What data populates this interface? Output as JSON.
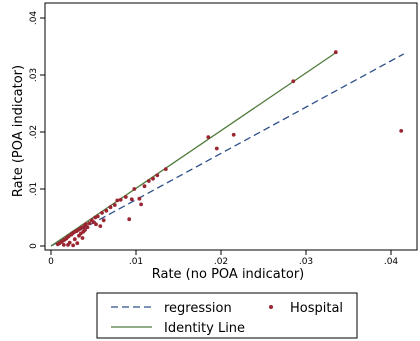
{
  "chart_data": {
    "type": "scatter",
    "xlabel": "Rate (no POA indicator)",
    "ylabel": "Rate (POA indicator)",
    "xlim": [
      0,
      0.042
    ],
    "ylim": [
      0,
      0.04
    ],
    "x_ticks": [
      {
        "v": 0,
        "label": "0"
      },
      {
        "v": 0.01,
        "label": ".01"
      },
      {
        "v": 0.02,
        "label": ".02"
      },
      {
        "v": 0.03,
        "label": ".03"
      },
      {
        "v": 0.04,
        "label": ".04"
      }
    ],
    "y_ticks": [
      {
        "v": 0,
        "label": "0"
      },
      {
        "v": 0.01,
        "label": ".01"
      },
      {
        "v": 0.02,
        "label": ".02"
      },
      {
        "v": 0.03,
        "label": ".03"
      },
      {
        "v": 0.04,
        "label": ".04"
      }
    ],
    "grid": false,
    "legend_position": "bottom",
    "legend": [
      {
        "name": "regression",
        "style": "dashed-line",
        "color": "#2e4f8a"
      },
      {
        "name": "Hospital",
        "style": "marker",
        "color": "#9b2530"
      },
      {
        "name": "Identity Line",
        "style": "solid-line",
        "color": "#4f7a3a"
      }
    ],
    "regression_line": {
      "x": [
        0,
        0.0415
      ],
      "y": [
        0,
        0.0337
      ]
    },
    "identity_line": {
      "x": [
        0,
        0.0335
      ],
      "y": [
        0,
        0.0339
      ]
    },
    "points": [
      [
        0.0008,
        0.0003
      ],
      [
        0.001,
        0.0005
      ],
      [
        0.0012,
        0.0007
      ],
      [
        0.0014,
        0.0009
      ],
      [
        0.0015,
        0.0002
      ],
      [
        0.0016,
        0.0011
      ],
      [
        0.0018,
        0.0013
      ],
      [
        0.0019,
        0.0015
      ],
      [
        0.002,
        0.0002
      ],
      [
        0.0021,
        0.0017
      ],
      [
        0.0022,
        0.0006
      ],
      [
        0.0024,
        0.002
      ],
      [
        0.0025,
        0.0022
      ],
      [
        0.0026,
        0.0001
      ],
      [
        0.0027,
        0.0024
      ],
      [
        0.0028,
        0.0012
      ],
      [
        0.003,
        0.0026
      ],
      [
        0.0031,
        0.0005
      ],
      [
        0.0032,
        0.0028
      ],
      [
        0.0033,
        0.0018
      ],
      [
        0.0034,
        0.003
      ],
      [
        0.0035,
        0.0022
      ],
      [
        0.0036,
        0.0032
      ],
      [
        0.0037,
        0.0014
      ],
      [
        0.0038,
        0.0025
      ],
      [
        0.0039,
        0.0035
      ],
      [
        0.004,
        0.0028
      ],
      [
        0.0041,
        0.0038
      ],
      [
        0.0043,
        0.0033
      ],
      [
        0.0045,
        0.004
      ],
      [
        0.0048,
        0.0045
      ],
      [
        0.005,
        0.0042
      ],
      [
        0.0052,
        0.005
      ],
      [
        0.0053,
        0.0038
      ],
      [
        0.0055,
        0.0052
      ],
      [
        0.0058,
        0.0035
      ],
      [
        0.006,
        0.0058
      ],
      [
        0.0062,
        0.0045
      ],
      [
        0.0065,
        0.0062
      ],
      [
        0.007,
        0.0068
      ],
      [
        0.0075,
        0.0072
      ],
      [
        0.0078,
        0.008
      ],
      [
        0.0082,
        0.0081
      ],
      [
        0.0088,
        0.0086
      ],
      [
        0.0092,
        0.0047
      ],
      [
        0.0095,
        0.0082
      ],
      [
        0.0098,
        0.01
      ],
      [
        0.0104,
        0.0083
      ],
      [
        0.0106,
        0.0073
      ],
      [
        0.011,
        0.0105
      ],
      [
        0.0115,
        0.0114
      ],
      [
        0.012,
        0.0118
      ],
      [
        0.0125,
        0.0124
      ],
      [
        0.0135,
        0.0135
      ],
      [
        0.0185,
        0.0191
      ],
      [
        0.0195,
        0.0171
      ],
      [
        0.0215,
        0.0195
      ],
      [
        0.0285,
        0.0289
      ],
      [
        0.0335,
        0.034
      ],
      [
        0.0412,
        0.0202
      ]
    ]
  }
}
